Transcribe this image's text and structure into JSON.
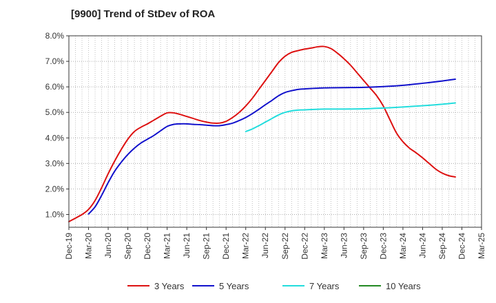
{
  "chart_data": {
    "type": "line",
    "title": "[9900]  Trend of StDev of ROA",
    "xlabel": "",
    "ylabel": "",
    "x_ticks": [
      "Dec-19",
      "Mar-20",
      "Jun-20",
      "Sep-20",
      "Dec-20",
      "Mar-21",
      "Jun-21",
      "Sep-21",
      "Dec-21",
      "Mar-22",
      "Jun-22",
      "Sep-22",
      "Dec-22",
      "Mar-23",
      "Jun-23",
      "Sep-23",
      "Dec-23",
      "Mar-24",
      "Jun-24",
      "Sep-24",
      "Dec-24",
      "Mar-25"
    ],
    "y_ticks": [
      "1.0%",
      "2.0%",
      "3.0%",
      "4.0%",
      "5.0%",
      "6.0%",
      "7.0%",
      "8.0%"
    ],
    "ylim": [
      0.5,
      8.0
    ],
    "y_unit": "%",
    "grid": true,
    "legend_position": "bottom",
    "series": [
      {
        "name": "3 Years",
        "color": "#dd1111",
        "points": [
          [
            "Dec-19",
            0.72
          ],
          [
            "Feb-20",
            1.0
          ],
          [
            "Mar-20",
            1.2
          ],
          [
            "Apr-20",
            1.55
          ],
          [
            "May-20",
            2.05
          ],
          [
            "Jun-20",
            2.6
          ],
          [
            "Jul-20",
            3.1
          ],
          [
            "Aug-20",
            3.55
          ],
          [
            "Sep-20",
            3.95
          ],
          [
            "Oct-20",
            4.25
          ],
          [
            "Nov-20",
            4.42
          ],
          [
            "Dec-20",
            4.55
          ],
          [
            "Jan-21",
            4.7
          ],
          [
            "Feb-21",
            4.85
          ],
          [
            "Mar-21",
            4.98
          ],
          [
            "Apr-21",
            4.98
          ],
          [
            "May-21",
            4.92
          ],
          [
            "Jun-21",
            4.84
          ],
          [
            "Jul-21",
            4.76
          ],
          [
            "Aug-21",
            4.68
          ],
          [
            "Sep-21",
            4.62
          ],
          [
            "Oct-21",
            4.58
          ],
          [
            "Nov-21",
            4.58
          ],
          [
            "Dec-21",
            4.65
          ],
          [
            "Jan-22",
            4.8
          ],
          [
            "Feb-22",
            5.0
          ],
          [
            "Mar-22",
            5.25
          ],
          [
            "Apr-22",
            5.55
          ],
          [
            "May-22",
            5.9
          ],
          [
            "Jun-22",
            6.25
          ],
          [
            "Jul-22",
            6.6
          ],
          [
            "Aug-22",
            6.95
          ],
          [
            "Sep-22",
            7.2
          ],
          [
            "Oct-22",
            7.35
          ],
          [
            "Nov-22",
            7.42
          ],
          [
            "Dec-22",
            7.48
          ],
          [
            "Jan-23",
            7.52
          ],
          [
            "Feb-23",
            7.57
          ],
          [
            "Mar-23",
            7.58
          ],
          [
            "Apr-23",
            7.5
          ],
          [
            "May-23",
            7.32
          ],
          [
            "Jun-23",
            7.1
          ],
          [
            "Jul-23",
            6.85
          ],
          [
            "Aug-23",
            6.55
          ],
          [
            "Sep-23",
            6.25
          ],
          [
            "Oct-23",
            5.95
          ],
          [
            "Nov-23",
            5.65
          ],
          [
            "Dec-23",
            5.25
          ],
          [
            "Jan-24",
            4.72
          ],
          [
            "Feb-24",
            4.2
          ],
          [
            "Mar-24",
            3.85
          ],
          [
            "Apr-24",
            3.6
          ],
          [
            "May-24",
            3.42
          ],
          [
            "Jun-24",
            3.22
          ],
          [
            "Jul-24",
            3.0
          ],
          [
            "Aug-24",
            2.78
          ],
          [
            "Sep-24",
            2.62
          ],
          [
            "Oct-24",
            2.52
          ],
          [
            "Nov-24",
            2.47
          ]
        ]
      },
      {
        "name": "5 Years",
        "color": "#1111cc",
        "points": [
          [
            "Mar-20",
            1.02
          ],
          [
            "Apr-20",
            1.3
          ],
          [
            "May-20",
            1.75
          ],
          [
            "Jun-20",
            2.25
          ],
          [
            "Jul-20",
            2.7
          ],
          [
            "Aug-20",
            3.05
          ],
          [
            "Sep-20",
            3.35
          ],
          [
            "Oct-20",
            3.6
          ],
          [
            "Nov-20",
            3.8
          ],
          [
            "Dec-20",
            3.95
          ],
          [
            "Jan-21",
            4.1
          ],
          [
            "Feb-21",
            4.28
          ],
          [
            "Mar-21",
            4.45
          ],
          [
            "Apr-21",
            4.53
          ],
          [
            "May-21",
            4.55
          ],
          [
            "Jun-21",
            4.55
          ],
          [
            "Jul-21",
            4.53
          ],
          [
            "Aug-21",
            4.52
          ],
          [
            "Sep-21",
            4.5
          ],
          [
            "Oct-21",
            4.48
          ],
          [
            "Nov-21",
            4.48
          ],
          [
            "Dec-21",
            4.52
          ],
          [
            "Jan-22",
            4.58
          ],
          [
            "Feb-22",
            4.68
          ],
          [
            "Mar-22",
            4.8
          ],
          [
            "Apr-22",
            4.95
          ],
          [
            "May-22",
            5.12
          ],
          [
            "Jun-22",
            5.3
          ],
          [
            "Jul-22",
            5.47
          ],
          [
            "Aug-22",
            5.65
          ],
          [
            "Sep-22",
            5.78
          ],
          [
            "Oct-22",
            5.85
          ],
          [
            "Nov-22",
            5.9
          ],
          [
            "Dec-22",
            5.92
          ],
          [
            "Mar-23",
            5.96
          ],
          [
            "Jun-23",
            5.97
          ],
          [
            "Sep-23",
            5.98
          ],
          [
            "Dec-23",
            6.01
          ],
          [
            "Mar-24",
            6.06
          ],
          [
            "Jun-24",
            6.14
          ],
          [
            "Sep-24",
            6.23
          ],
          [
            "Nov-24",
            6.3
          ]
        ]
      },
      {
        "name": "7 Years",
        "color": "#22dddd",
        "points": [
          [
            "Mar-22",
            4.25
          ],
          [
            "Apr-22",
            4.35
          ],
          [
            "May-22",
            4.48
          ],
          [
            "Jun-22",
            4.62
          ],
          [
            "Jul-22",
            4.76
          ],
          [
            "Aug-22",
            4.9
          ],
          [
            "Sep-22",
            5.0
          ],
          [
            "Oct-22",
            5.06
          ],
          [
            "Nov-22",
            5.09
          ],
          [
            "Dec-22",
            5.1
          ],
          [
            "Mar-23",
            5.13
          ],
          [
            "Jun-23",
            5.13
          ],
          [
            "Sep-23",
            5.14
          ],
          [
            "Dec-23",
            5.17
          ],
          [
            "Mar-24",
            5.21
          ],
          [
            "Jun-24",
            5.26
          ],
          [
            "Sep-24",
            5.32
          ],
          [
            "Nov-24",
            5.37
          ]
        ]
      },
      {
        "name": "10 Years",
        "color": "#228822",
        "points": []
      }
    ]
  }
}
